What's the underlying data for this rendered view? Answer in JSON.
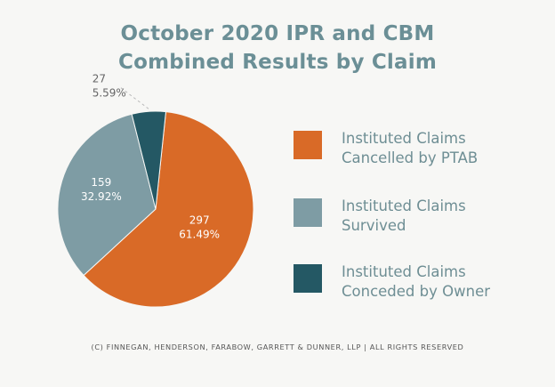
{
  "title_line1": "October 2020 IPR and CBM",
  "title_line2": "Combined Results by Claim",
  "footer": "(C) FINNEGAN, HENDERSON, FARABOW, GARRETT & DUNNER, LLP | ALL RIGHTS RESERVED",
  "chart_data": {
    "type": "pie",
    "title": "October 2020 IPR and CBM Combined Results by Claim",
    "slices": [
      {
        "label": "Instituted Claims Cancelled by PTAB",
        "value": 297,
        "percent": "61.49%",
        "color": "#d96a27"
      },
      {
        "label": "Instituted Claims Survived",
        "value": 159,
        "percent": "32.92%",
        "color": "#7e9ca4"
      },
      {
        "label": "Instituted Claims Conceded by Owner",
        "value": 27,
        "percent": "5.59%",
        "color": "#245864"
      }
    ],
    "legend_position": "right"
  },
  "legend": [
    {
      "line1": "Instituted Claims",
      "line2": "Cancelled by PTAB",
      "color": "#d96a27"
    },
    {
      "line1": "Instituted Claims",
      "line2": "Survived",
      "color": "#7e9ca4"
    },
    {
      "line1": "Instituted Claims",
      "line2": "Conceded by Owner",
      "color": "#245864"
    }
  ]
}
